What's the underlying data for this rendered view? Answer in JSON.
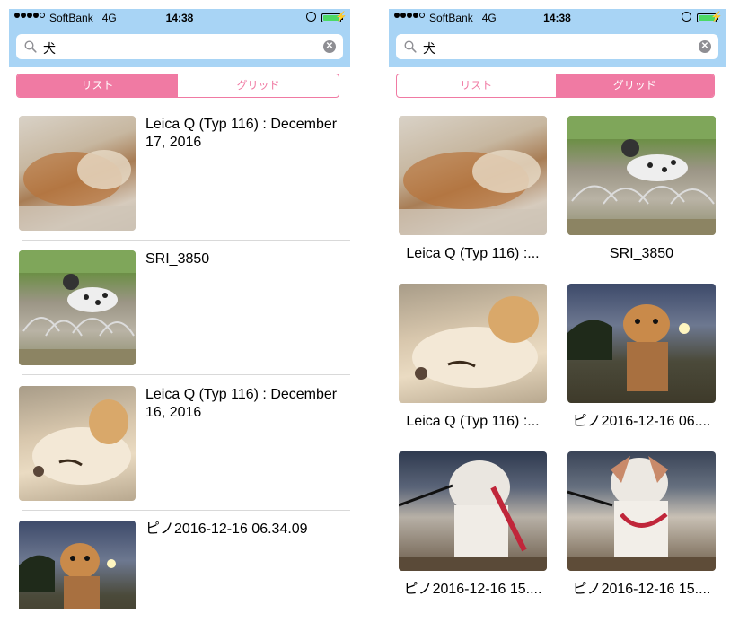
{
  "status_bar": {
    "carrier": "SoftBank",
    "network": "4G",
    "time": "14:38",
    "battery_icon": "battery-charging-icon",
    "lock_icon": "orientation-lock-icon"
  },
  "search": {
    "query": "犬",
    "search_icon": "magnifier-icon",
    "clear_icon": "clear-icon"
  },
  "segments": {
    "list_label": "リスト",
    "grid_label": "グリッド"
  },
  "colors": {
    "nav_background": "#a8d4f5",
    "accent_pink": "#f07aa3",
    "battery_green": "#4cd964"
  },
  "left_screen": {
    "selected_segment": "リスト",
    "rows": [
      {
        "title": "Leica Q (Typ 116) : December 17, 2016"
      },
      {
        "title": "SRI_3850"
      },
      {
        "title": "Leica Q (Typ 116) : December 16, 2016"
      },
      {
        "title": "ピノ2016-12-16 06.34.09"
      }
    ]
  },
  "right_screen": {
    "selected_segment": "グリッド",
    "cells": [
      {
        "caption": "Leica Q (Typ 116) :..."
      },
      {
        "caption": "SRI_3850"
      },
      {
        "caption": "Leica Q (Typ 116) :..."
      },
      {
        "caption": "ピノ2016-12-16 06...."
      },
      {
        "caption": "ピノ2016-12-16 15...."
      },
      {
        "caption": "ピノ2016-12-16 15...."
      }
    ]
  }
}
